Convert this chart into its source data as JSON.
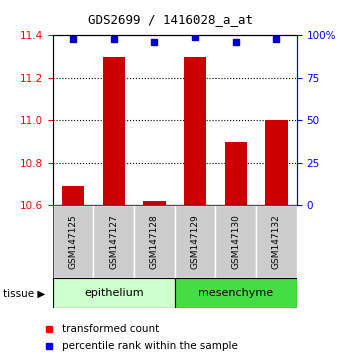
{
  "title": "GDS2699 / 1416028_a_at",
  "samples": [
    "GSM147125",
    "GSM147127",
    "GSM147128",
    "GSM147129",
    "GSM147130",
    "GSM147132"
  ],
  "red_values": [
    10.69,
    11.3,
    10.62,
    11.3,
    10.9,
    11.0
  ],
  "blue_values": [
    98,
    98,
    96,
    99,
    96,
    98
  ],
  "ylim_left": [
    10.6,
    11.4
  ],
  "ylim_right": [
    0,
    100
  ],
  "yticks_left": [
    10.6,
    10.8,
    11.0,
    11.2,
    11.4
  ],
  "yticks_right": [
    0,
    25,
    50,
    75,
    100
  ],
  "ytick_labels_right": [
    "0",
    "25",
    "50",
    "75",
    "100%"
  ],
  "bar_color": "#cc0000",
  "dot_color": "#0000cc",
  "bg_color": "#ffffff",
  "label_area_color": "#cccccc",
  "epithelium_color": "#ccffcc",
  "mesenchyme_color": "#44dd44",
  "epithelium_label": "epithelium",
  "mesenchyme_label": "mesenchyme",
  "tissue_label": "tissue",
  "legend_red": "transformed count",
  "legend_blue": "percentile rank within the sample"
}
